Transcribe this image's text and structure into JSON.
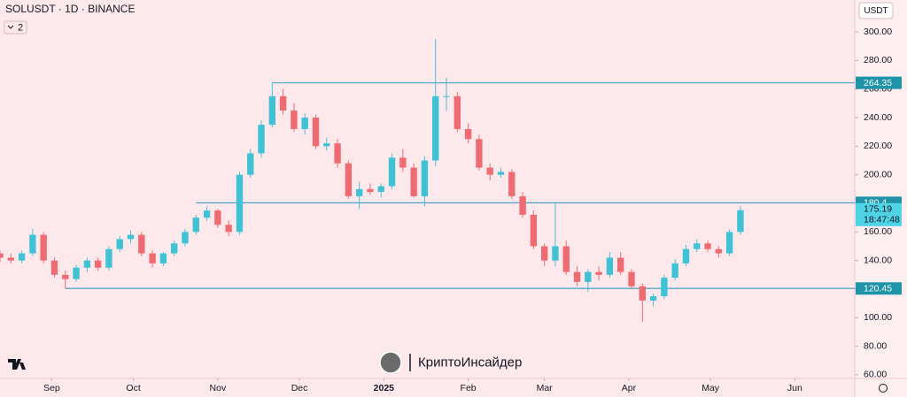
{
  "chart_data": {
    "type": "candlestick",
    "title": "SOLUSDT · 1D · BINANCE",
    "indicator_count": "2",
    "currency": "USDT",
    "watermark": "КриптоИнсайдер",
    "up_color": "#3fc1d6",
    "down_color": "#ef6b72",
    "line_color": "#4aa3c6",
    "x": [
      0,
      4,
      8,
      12,
      16,
      20,
      24,
      28,
      32,
      36,
      40,
      44,
      48,
      52,
      56,
      60,
      64,
      68,
      72,
      76,
      80,
      84,
      88,
      92,
      96,
      100,
      104,
      108,
      112,
      116,
      120,
      124,
      128,
      132,
      136,
      140,
      144,
      148,
      152,
      156,
      160,
      164,
      168,
      172,
      176,
      180,
      184,
      188,
      192,
      196,
      200,
      204,
      208,
      212,
      216,
      220,
      224,
      228,
      232,
      236,
      240,
      244,
      248,
      252,
      256,
      260,
      264,
      268,
      272
    ],
    "open": [
      145,
      142,
      140,
      145,
      158,
      140,
      130,
      127,
      135,
      140,
      135,
      148,
      155,
      158,
      145,
      138,
      145,
      152,
      160,
      170,
      175,
      165,
      160,
      200,
      215,
      235,
      255,
      245,
      232,
      240,
      220,
      222,
      208,
      185,
      190,
      188,
      192,
      212,
      205,
      185,
      210,
      255,
      255,
      232,
      225,
      205,
      200,
      202,
      185,
      172,
      150,
      140,
      150,
      132,
      125,
      132,
      130,
      142,
      132,
      122,
      112,
      115,
      128,
      138,
      148,
      152,
      148,
      145,
      160
    ],
    "high": [
      147,
      145,
      147,
      162,
      160,
      142,
      133,
      137,
      142,
      142,
      150,
      157,
      161,
      160,
      147,
      146,
      154,
      162,
      172,
      178,
      176,
      168,
      202,
      218,
      238,
      264.35,
      260,
      250,
      243,
      242,
      226,
      225,
      210,
      195,
      194,
      194,
      215,
      218,
      208,
      213,
      295,
      268,
      258,
      236,
      228,
      208,
      205,
      204,
      188,
      175,
      152,
      180,
      154,
      136,
      134,
      136,
      146,
      146,
      134,
      124,
      117,
      130,
      141,
      151,
      155,
      154,
      150,
      162,
      178
    ],
    "low": [
      139,
      138,
      138,
      143,
      138,
      128,
      120.45,
      125,
      132,
      133,
      133,
      146,
      152,
      143,
      135,
      136,
      143,
      150,
      158,
      168,
      163,
      157,
      158,
      198,
      212,
      233,
      242,
      230,
      228,
      218,
      217,
      205,
      183,
      176,
      186,
      184,
      190,
      202,
      184,
      178,
      206,
      245,
      230,
      222,
      203,
      196,
      198,
      183,
      170,
      148,
      136,
      136,
      130,
      122,
      118,
      126,
      128,
      130,
      120,
      97,
      108,
      113,
      126,
      136,
      146,
      146,
      142,
      143,
      158
    ],
    "close": [
      142,
      140,
      145,
      158,
      140,
      130,
      127,
      135,
      140,
      135,
      148,
      155,
      158,
      145,
      138,
      145,
      152,
      160,
      170,
      175,
      165,
      160,
      200,
      215,
      235,
      255,
      245,
      232,
      240,
      220,
      222,
      208,
      185,
      190,
      188,
      192,
      212,
      205,
      185,
      210,
      255,
      255,
      232,
      225,
      205,
      200,
      202,
      185,
      172,
      150,
      140,
      150,
      132,
      125,
      132,
      130,
      142,
      132,
      122,
      112,
      115,
      128,
      138,
      148,
      152,
      148,
      145,
      160,
      175.19
    ],
    "xlim": [
      0,
      314
    ],
    "ylim": [
      57.5,
      322.3
    ],
    "yticks": [
      {
        "value": 60,
        "label": "60.00"
      },
      {
        "value": 80,
        "label": "80.00"
      },
      {
        "value": 100,
        "label": "100.00"
      },
      {
        "value": 120,
        "label": "120.00"
      },
      {
        "value": 140,
        "label": "140.00"
      },
      {
        "value": 160,
        "label": "160.00"
      },
      {
        "value": 180,
        "label": "180.00"
      },
      {
        "value": 200,
        "label": "200.00"
      },
      {
        "value": 220,
        "label": "220.00"
      },
      {
        "value": 240,
        "label": "240.00"
      },
      {
        "value": 260,
        "label": "260.00"
      },
      {
        "value": 280,
        "label": "280.00"
      },
      {
        "value": 300,
        "label": "300.00"
      }
    ],
    "xticks": [
      {
        "value": 19,
        "label": "Sep"
      },
      {
        "value": 49,
        "label": "Oct"
      },
      {
        "value": 80,
        "label": "Nov"
      },
      {
        "value": 110,
        "label": "Dec"
      },
      {
        "value": 141,
        "label": "2025"
      },
      {
        "value": 172,
        "label": "Feb"
      },
      {
        "value": 200,
        "label": "Mar"
      },
      {
        "value": 231,
        "label": "Apr"
      },
      {
        "value": 261,
        "label": "May"
      },
      {
        "value": 292,
        "label": "Jun"
      }
    ],
    "hlines": [
      {
        "value": 264.35,
        "start": 100
      },
      {
        "value": 180.4,
        "start": 72
      },
      {
        "value": 120.45,
        "start": 24
      }
    ],
    "last_price": 175.19,
    "countdown": "18:47:48"
  }
}
